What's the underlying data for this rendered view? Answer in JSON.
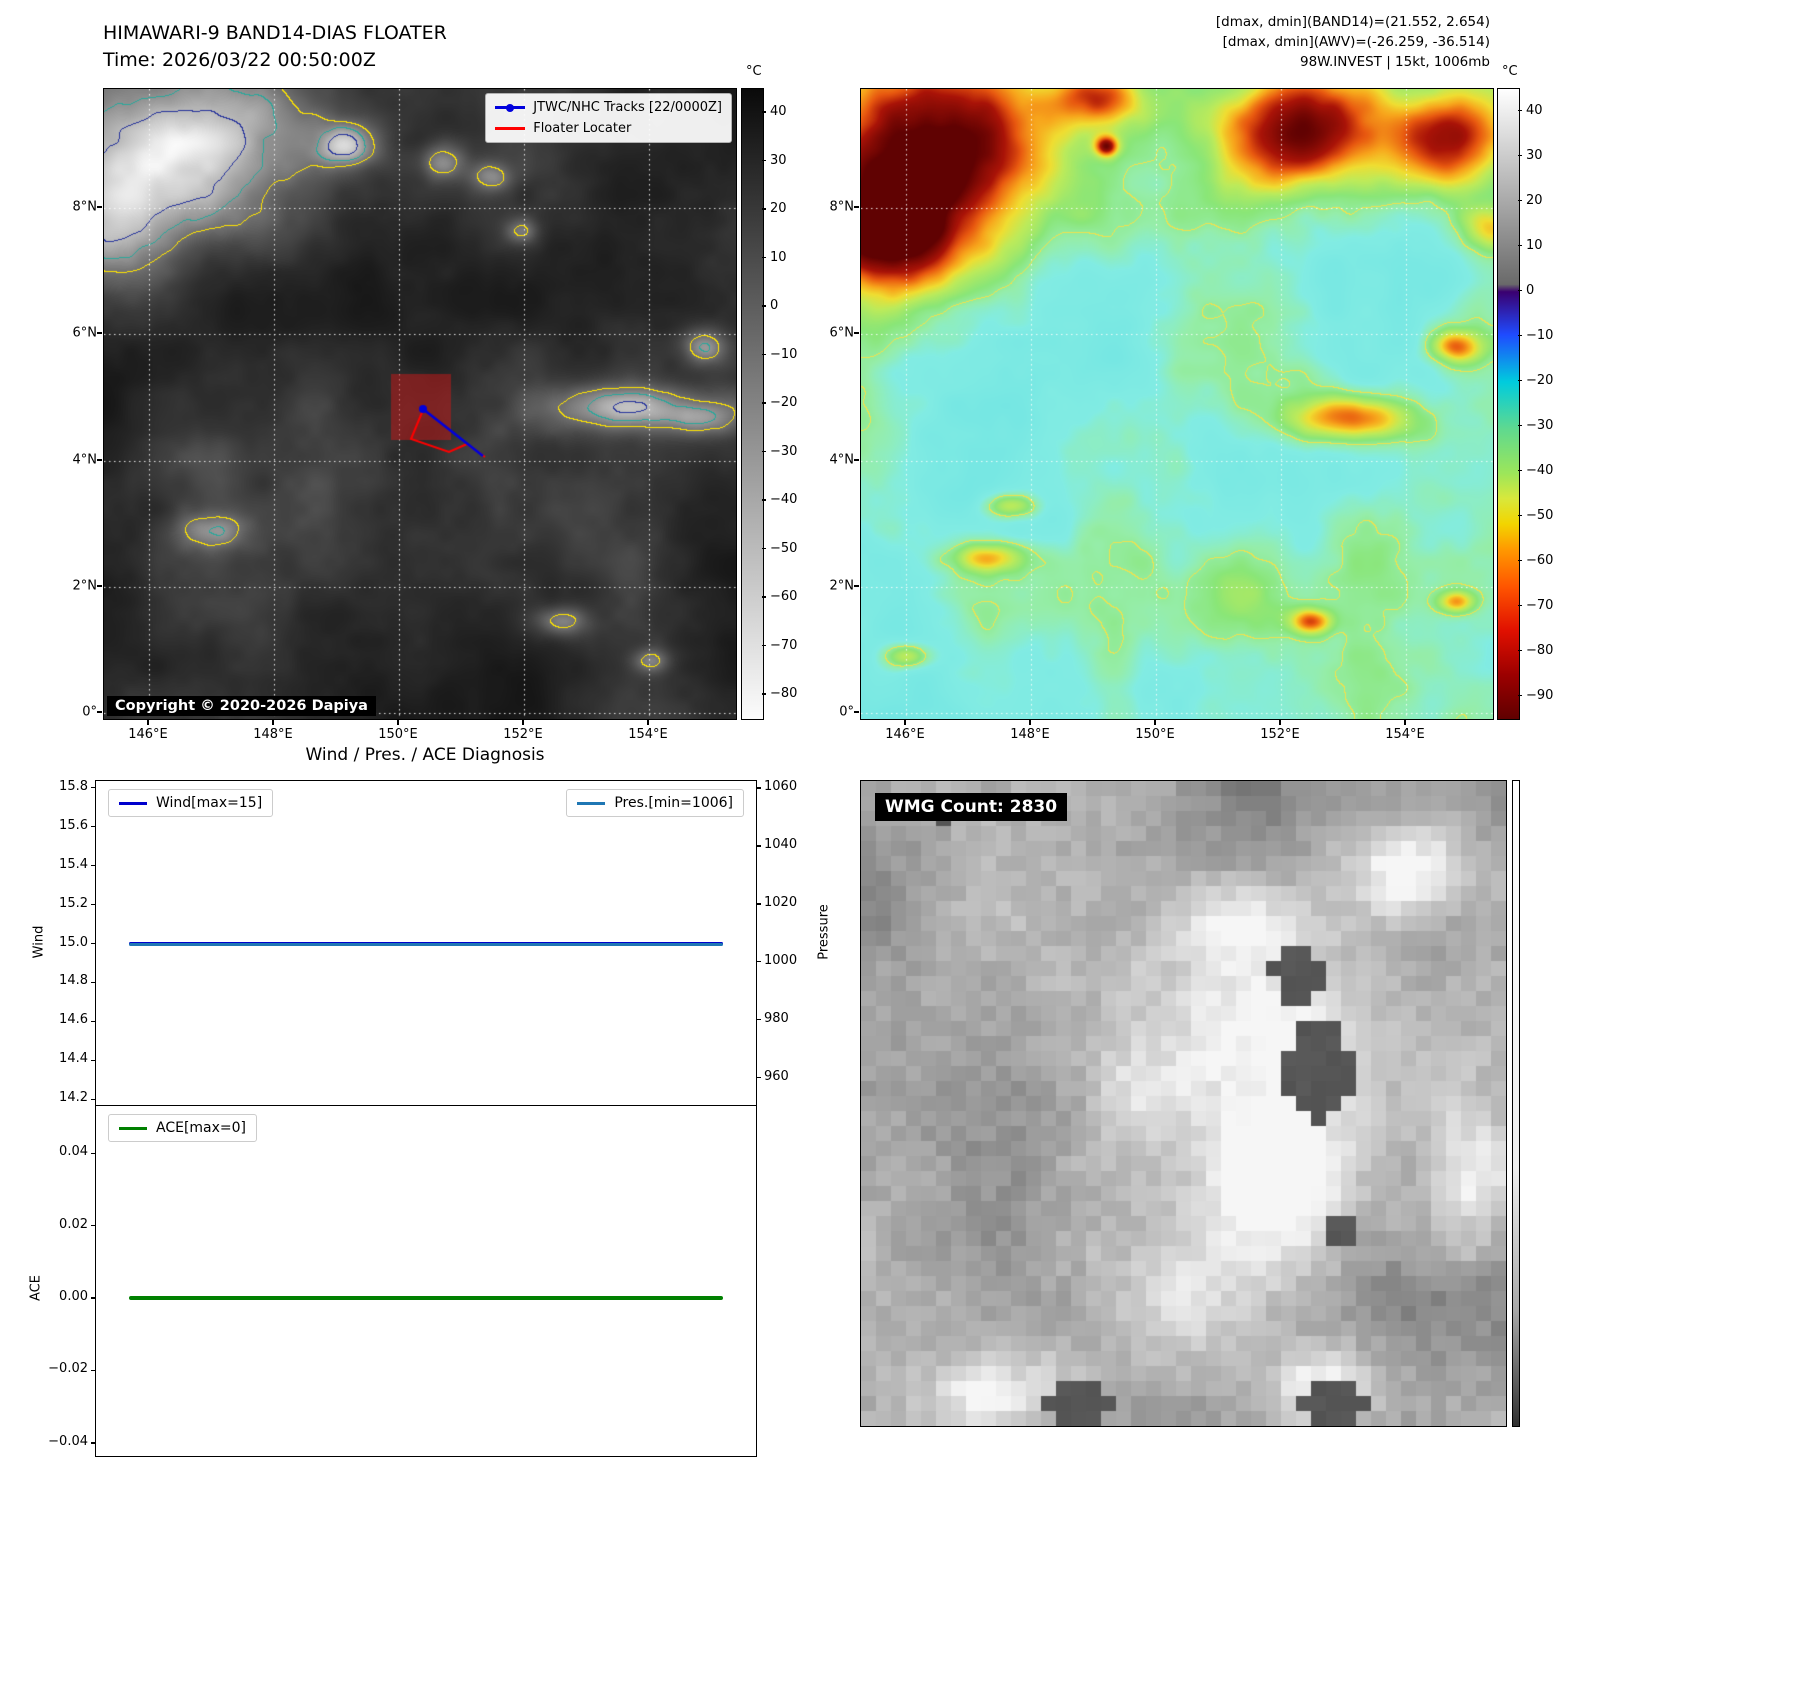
{
  "band14": {
    "title": "HIMAWARI-9 BAND14-DIAS FLOATER",
    "time": "Time: 2026/03/22 00:50:00Z",
    "copyright": "Copyright © 2020-2026 Dapiya",
    "legend": {
      "tracks": {
        "label": "JTWC/NHC Tracks [22/0000Z]",
        "color": "#0000dd"
      },
      "floater": {
        "label": "Floater Locater",
        "color": "#ff0000"
      }
    },
    "lat_ticks": [
      "8°N",
      "6°N",
      "4°N",
      "2°N",
      "0°"
    ],
    "lon_ticks": [
      "146°E",
      "148°E",
      "150°E",
      "152°E",
      "154°E"
    ],
    "colorbar": {
      "unit": "°C",
      "ticks": [
        "40",
        "30",
        "20",
        "10",
        "0",
        "−10",
        "−20",
        "−30",
        "−40",
        "−50",
        "−60",
        "−70",
        "−80"
      ],
      "gradient": [
        [
          0,
          "#0a0a0a"
        ],
        [
          1,
          "#fcfcfc"
        ]
      ]
    }
  },
  "awv": {
    "header": [
      "[dmax, dmin](BAND14)=(21.552, 2.654)",
      "[dmax, dmin](AWV)=(-26.259, -36.514)",
      "98W.INVEST | 15kt, 1006mb"
    ],
    "lat_ticks": [
      "8°N",
      "6°N",
      "4°N",
      "2°N",
      "0°"
    ],
    "lon_ticks": [
      "146°E",
      "148°E",
      "150°E",
      "152°E",
      "154°E"
    ],
    "colorbar": {
      "unit": "°C",
      "ticks": [
        "40",
        "30",
        "20",
        "10",
        "0",
        "−10",
        "−20",
        "−30",
        "−40",
        "−50",
        "−60",
        "−70",
        "−80",
        "−90"
      ],
      "gradient": [
        [
          0,
          "#ffffff"
        ],
        [
          0.31,
          "#6a6a6a"
        ],
        [
          0.322,
          "#3a0070"
        ],
        [
          0.39,
          "#1f4bff"
        ],
        [
          0.465,
          "#00ccdd"
        ],
        [
          0.54,
          "#5fd98f"
        ],
        [
          0.61,
          "#9ce65a"
        ],
        [
          0.65,
          "#d8e83c"
        ],
        [
          0.69,
          "#f2d500"
        ],
        [
          0.73,
          "#ff9a00"
        ],
        [
          0.79,
          "#ff5500"
        ],
        [
          0.86,
          "#e01000"
        ],
        [
          0.93,
          "#9c0000"
        ],
        [
          1,
          "#600000"
        ]
      ]
    }
  },
  "wmg": {
    "count_label": "WMG Count: 2830",
    "colorbar_gradient": [
      [
        0,
        "#ffffff"
      ],
      [
        0.6,
        "#efefef"
      ],
      [
        0.82,
        "#a8a8a8"
      ],
      [
        1,
        "#303030"
      ]
    ]
  },
  "chart_data": [
    {
      "id": "wind_pressure",
      "type": "line",
      "title": "Wind / Pres. / ACE Diagnosis",
      "ylabel": "Wind",
      "y2label": "Pressure",
      "ylim": [
        14.165,
        15.835
      ],
      "y2lim": [
        950.3,
        1062.4
      ],
      "yticks": [
        {
          "v": 15.8,
          "label": "15.8"
        },
        {
          "v": 15.6,
          "label": "15.6"
        },
        {
          "v": 15.4,
          "label": "15.4"
        },
        {
          "v": 15.2,
          "label": "15.2"
        },
        {
          "v": 15.0,
          "label": "15.0"
        },
        {
          "v": 14.8,
          "label": "14.8"
        },
        {
          "v": 14.6,
          "label": "14.6"
        },
        {
          "v": 14.4,
          "label": "14.4"
        },
        {
          "v": 14.2,
          "label": "14.2"
        }
      ],
      "y2ticks": [
        {
          "v": 1060,
          "label": "1060"
        },
        {
          "v": 1040,
          "label": "1040"
        },
        {
          "v": 1020,
          "label": "1020"
        },
        {
          "v": 1000,
          "label": "1000"
        },
        {
          "v": 980,
          "label": "980"
        },
        {
          "v": 960,
          "label": "960"
        }
      ],
      "series": [
        {
          "name": "Wind[max=15]",
          "color": "#0000cd",
          "axis": "y",
          "value": 15.0,
          "legend": "left"
        },
        {
          "name": "Pres.[min=1006]",
          "color": "#1f77b4",
          "axis": "y2",
          "value": 1006,
          "legend": "right"
        }
      ],
      "x_extent": [
        0.05,
        0.95
      ],
      "grid": false,
      "legend_position": "upper left / upper right"
    },
    {
      "id": "ace",
      "type": "line",
      "title": "",
      "ylabel": "ACE",
      "ylim": [
        -0.0436,
        0.053
      ],
      "yticks": [
        {
          "v": 0.04,
          "label": "0.04"
        },
        {
          "v": 0.02,
          "label": "0.02"
        },
        {
          "v": 0.0,
          "label": "0.00"
        },
        {
          "v": -0.02,
          "label": "−0.02"
        },
        {
          "v": -0.04,
          "label": "−0.04"
        }
      ],
      "series": [
        {
          "name": "ACE[max=0]",
          "color": "#008000",
          "axis": "y",
          "value": 0.0,
          "legend": "left"
        }
      ],
      "x_extent": [
        0.05,
        0.95
      ],
      "grid": false,
      "legend_position": "upper left"
    }
  ]
}
